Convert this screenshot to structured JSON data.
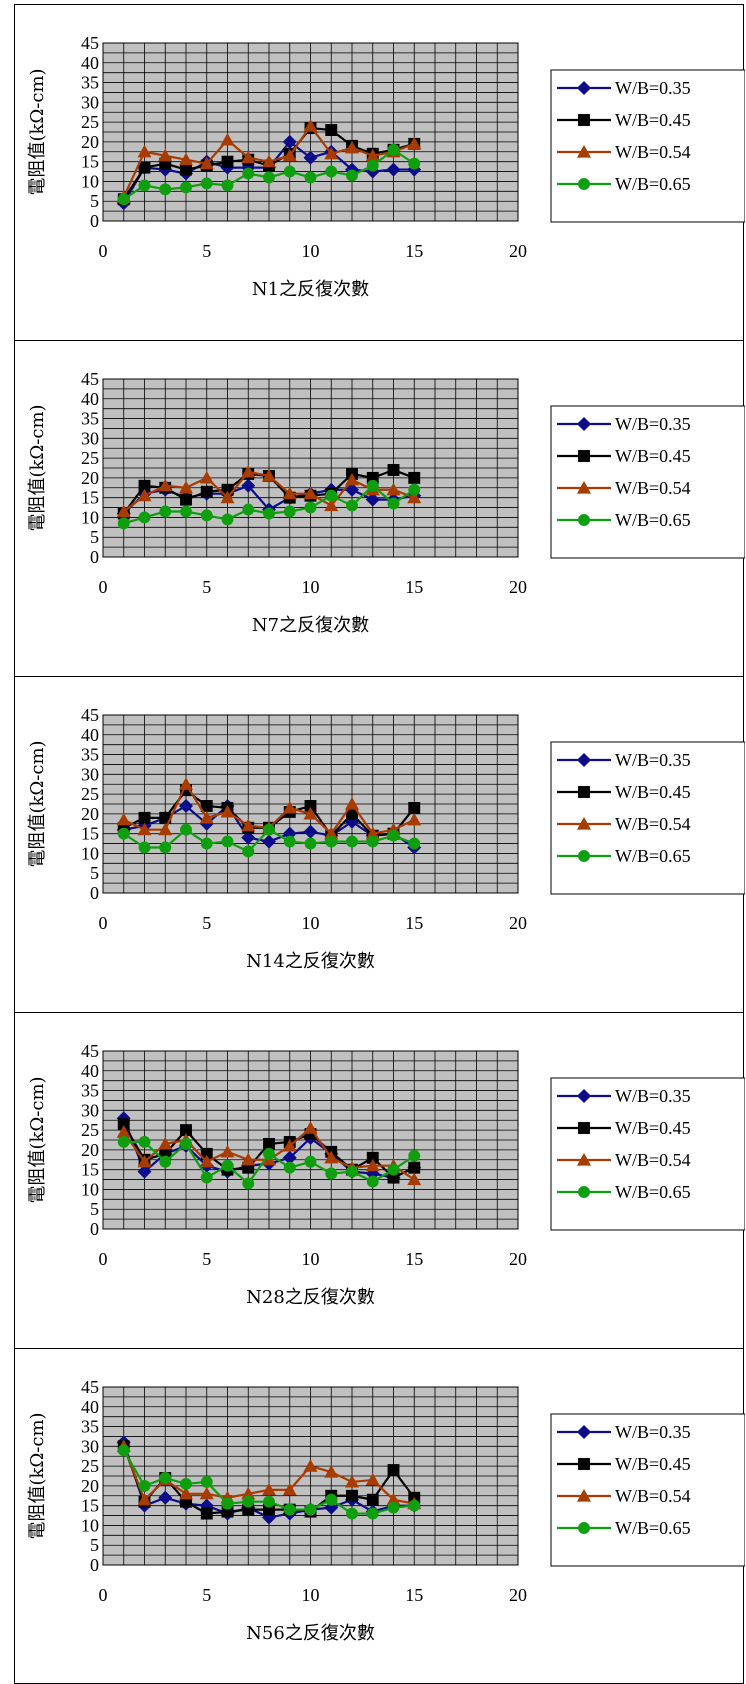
{
  "chart_data": [
    {
      "type": "line",
      "xlabel": "N1之反復次數",
      "ylabel": "電阻值(kΩ-cm)",
      "xlim": [
        0,
        20
      ],
      "ylim": [
        0,
        45
      ],
      "xticks": [
        "0",
        "5",
        "10",
        "15",
        "20"
      ],
      "yticks": [
        "0",
        "5",
        "10",
        "15",
        "20",
        "25",
        "30",
        "35",
        "40",
        "45"
      ],
      "grid": true,
      "legend": "right",
      "x": [
        1,
        2,
        3,
        4,
        5,
        6,
        7,
        8,
        9,
        10,
        11,
        12,
        13,
        14,
        15
      ],
      "series": [
        {
          "name": "W/B=0.35",
          "values": [
            4.5,
            13.5,
            13,
            12,
            15,
            13.5,
            13.5,
            13.5,
            20,
            16,
            17.5,
            13,
            12.5,
            13,
            13
          ]
        },
        {
          "name": "W/B=0.45",
          "values": [
            5.5,
            13.5,
            14.5,
            13,
            14,
            15,
            15.5,
            14,
            17,
            23.5,
            23,
            19,
            17,
            18,
            19.5
          ]
        },
        {
          "name": "W/B=0.54",
          "values": [
            6,
            17.5,
            16.5,
            15.5,
            14.5,
            20.5,
            16,
            15,
            16.5,
            24,
            17,
            18.5,
            16.5,
            17.5,
            19.5
          ]
        },
        {
          "name": "W/B=0.65",
          "values": [
            5.5,
            9,
            8,
            8.5,
            9.5,
            9,
            12,
            11,
            12.5,
            11,
            12.5,
            11.5,
            14,
            18,
            14.5
          ]
        }
      ]
    },
    {
      "type": "line",
      "xlabel": "N7之反復次數",
      "ylabel": "電阻值(kΩ-cm)",
      "xlim": [
        0,
        20
      ],
      "ylim": [
        0,
        45
      ],
      "xticks": [
        "0",
        "5",
        "10",
        "15",
        "20"
      ],
      "yticks": [
        "0",
        "5",
        "10",
        "15",
        "20",
        "25",
        "30",
        "35",
        "40",
        "45"
      ],
      "grid": true,
      "legend": "right",
      "x": [
        1,
        2,
        3,
        4,
        5,
        6,
        7,
        8,
        9,
        10,
        11,
        12,
        13,
        14,
        15
      ],
      "series": [
        {
          "name": "W/B=0.35",
          "values": [
            11,
            16,
            17,
            15,
            16,
            16,
            18,
            12,
            15,
            16,
            17,
            17,
            14.5,
            14.5,
            15.5
          ]
        },
        {
          "name": "W/B=0.45",
          "values": [
            11,
            18,
            17.5,
            14.5,
            16.5,
            17,
            21,
            20.5,
            15,
            15.5,
            16,
            21,
            20,
            22,
            20
          ]
        },
        {
          "name": "W/B=0.54",
          "values": [
            11.5,
            15.5,
            18,
            17.5,
            20,
            15,
            21.5,
            20.5,
            16,
            16,
            13,
            19.5,
            17,
            17,
            15
          ]
        },
        {
          "name": "W/B=0.65",
          "values": [
            8.5,
            10,
            11.5,
            11.5,
            10.5,
            9.5,
            12,
            11,
            11.5,
            12.5,
            15.5,
            13,
            18,
            13.5,
            17
          ]
        }
      ]
    },
    {
      "type": "line",
      "xlabel": "N14之反復次數",
      "ylabel": "電阻值(kΩ-cm)",
      "xlim": [
        0,
        20
      ],
      "ylim": [
        0,
        45
      ],
      "xticks": [
        "0",
        "5",
        "10",
        "15",
        "20"
      ],
      "yticks": [
        "0",
        "5",
        "10",
        "15",
        "20",
        "25",
        "30",
        "35",
        "40",
        "45"
      ],
      "grid": true,
      "legend": "right",
      "x": [
        1,
        2,
        3,
        4,
        5,
        6,
        7,
        8,
        9,
        10,
        11,
        12,
        13,
        14,
        15
      ],
      "series": [
        {
          "name": "W/B=0.35",
          "values": [
            16,
            17,
            19,
            22,
            17.5,
            22,
            14,
            13,
            15,
            15.5,
            14.5,
            18,
            14.5,
            15,
            11.5
          ]
        },
        {
          "name": "W/B=0.45",
          "values": [
            16.5,
            19,
            19,
            26,
            22,
            21.5,
            16.5,
            16.5,
            20.5,
            22,
            14.5,
            20,
            14.5,
            15,
            21.5
          ]
        },
        {
          "name": "W/B=0.54",
          "values": [
            18.5,
            16,
            16,
            27.5,
            19,
            20.5,
            17,
            16.5,
            21.5,
            20,
            15,
            22.5,
            15,
            16,
            18.5
          ]
        },
        {
          "name": "W/B=0.65",
          "values": [
            15,
            11.5,
            11.5,
            16,
            12.5,
            13,
            10.5,
            16,
            13,
            12.5,
            13,
            13,
            13,
            14.5,
            12.5
          ]
        }
      ]
    },
    {
      "type": "line",
      "xlabel": "N28之反復次數",
      "ylabel": "電阻值(kΩ-cm)",
      "xlim": [
        0,
        20
      ],
      "ylim": [
        0,
        45
      ],
      "xticks": [
        "0",
        "5",
        "10",
        "15",
        "20"
      ],
      "yticks": [
        "0",
        "5",
        "10",
        "15",
        "20",
        "25",
        "30",
        "35",
        "40",
        "45"
      ],
      "grid": true,
      "legend": "right",
      "x": [
        1,
        2,
        3,
        4,
        5,
        6,
        7,
        8,
        9,
        10,
        11,
        12,
        13,
        14,
        15
      ],
      "series": [
        {
          "name": "W/B=0.35",
          "values": [
            28,
            14.5,
            19,
            21,
            16,
            14.5,
            16,
            16.5,
            18,
            23,
            19,
            14.5,
            14,
            13,
            15.5
          ]
        },
        {
          "name": "W/B=0.45",
          "values": [
            26.5,
            17.5,
            19,
            25,
            19,
            15,
            15.5,
            21.5,
            22,
            24,
            19.5,
            15,
            18,
            13,
            15.5
          ]
        },
        {
          "name": "W/B=0.54",
          "values": [
            24.5,
            17,
            21.5,
            22.5,
            17,
            19.5,
            17.5,
            17.5,
            21,
            25.5,
            18,
            15.5,
            16,
            16,
            12.5
          ]
        },
        {
          "name": "W/B=0.65",
          "values": [
            22,
            22,
            17,
            21.5,
            13,
            16,
            11.5,
            19,
            15.5,
            17,
            14,
            14.5,
            12,
            15,
            18.5
          ]
        }
      ]
    },
    {
      "type": "line",
      "xlabel": "N56之反復次數",
      "ylabel": "電阻值(kΩ-cm)",
      "xlim": [
        0,
        20
      ],
      "ylim": [
        0,
        45
      ],
      "xticks": [
        "0",
        "5",
        "10",
        "15",
        "20"
      ],
      "yticks": [
        "0",
        "5",
        "10",
        "15",
        "20",
        "25",
        "30",
        "35",
        "40",
        "45"
      ],
      "grid": true,
      "legend": "right",
      "x": [
        1,
        2,
        3,
        4,
        5,
        6,
        7,
        8,
        9,
        10,
        11,
        12,
        13,
        14,
        15
      ],
      "series": [
        {
          "name": "W/B=0.35",
          "values": [
            31,
            15,
            17,
            15.5,
            15,
            13,
            14.5,
            12,
            13,
            14,
            14.5,
            16.5,
            13.5,
            15,
            15
          ]
        },
        {
          "name": "W/B=0.45",
          "values": [
            30,
            16,
            22,
            16,
            13,
            13.5,
            14,
            14,
            14,
            13.5,
            17.5,
            17.5,
            16.5,
            24,
            17
          ]
        },
        {
          "name": "W/B=0.54",
          "values": [
            30,
            16.5,
            21.5,
            18,
            18,
            17,
            18,
            19,
            19,
            25,
            23.5,
            21,
            21.5,
            16.5,
            15.5
          ]
        },
        {
          "name": "W/B=0.65",
          "values": [
            29,
            20,
            22,
            20.5,
            21,
            15.5,
            16,
            16,
            14,
            14,
            16.5,
            13,
            13,
            14.5,
            15
          ]
        }
      ]
    }
  ],
  "series_colors": [
    "#0c0c8a",
    "#000000",
    "#a83c00",
    "#0e9e0e"
  ],
  "series_markers": [
    "diamond",
    "square",
    "triangle",
    "circle"
  ]
}
